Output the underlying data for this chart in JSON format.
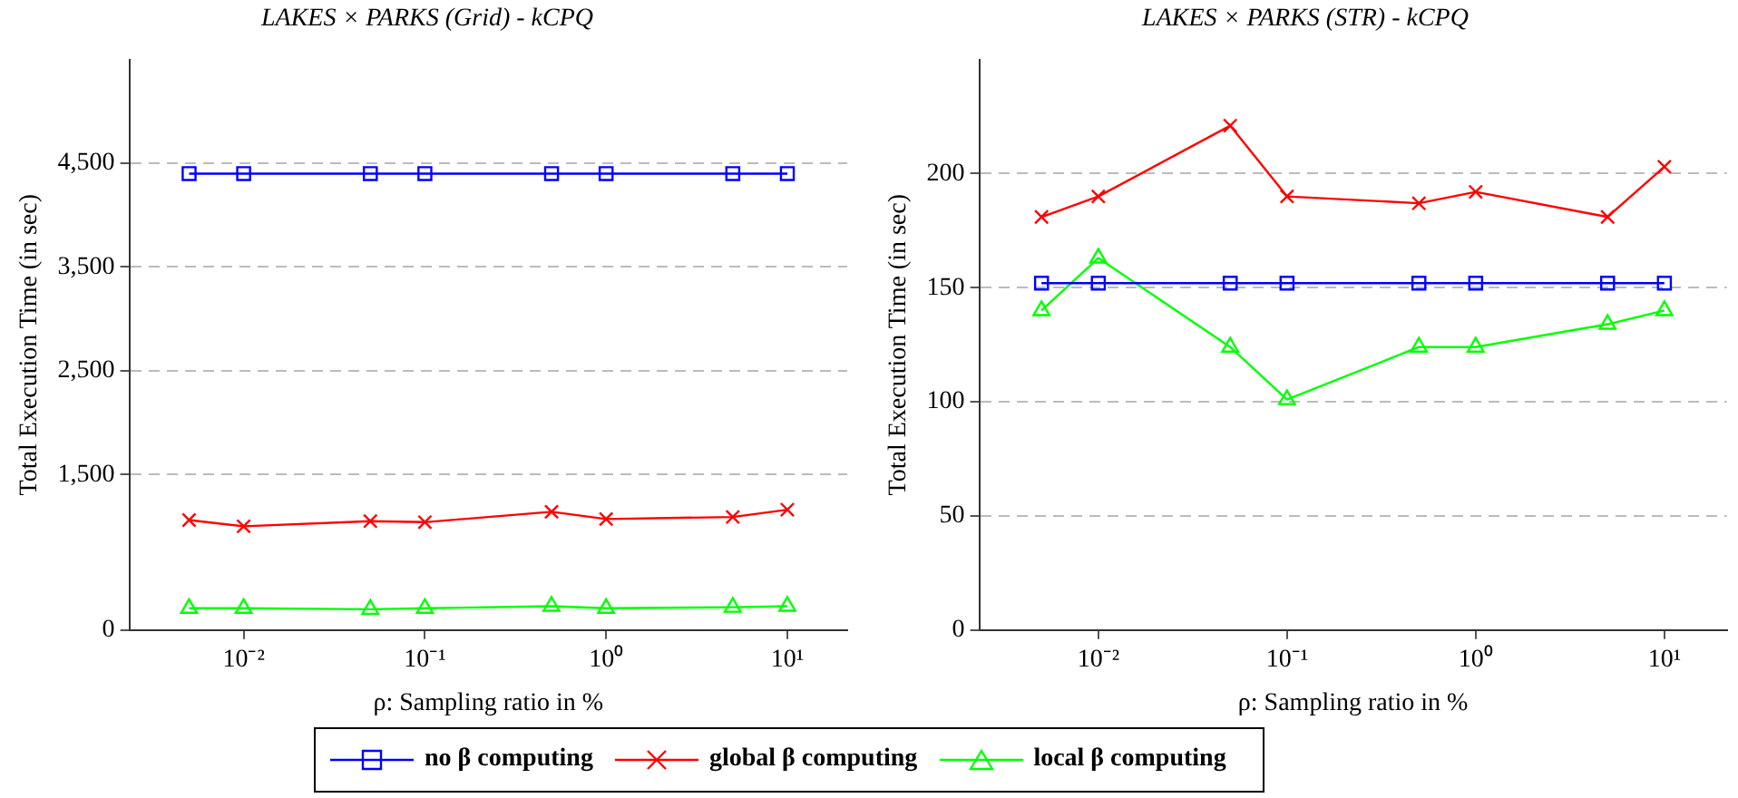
{
  "chart_data": [
    {
      "type": "line",
      "title": "LAKES × PARKS (Grid) - kCPQ",
      "xlabel": "ρ: Sampling ratio in %",
      "ylabel": "Total Execution Time (in sec)",
      "log": "x",
      "grid": "y",
      "legend": "bottom",
      "line_style": "solid",
      "x": [
        0.005,
        0.01,
        0.05,
        0.1,
        0.5,
        1,
        5,
        10
      ],
      "xlim": [
        0.00234,
        21.4
      ],
      "xticks": [
        {
          "value": 0.01,
          "label": "10⁻²"
        },
        {
          "value": 0.1,
          "label": "10⁻¹"
        },
        {
          "value": 1,
          "label": "10⁰"
        },
        {
          "value": 10,
          "label": "10¹"
        }
      ],
      "ylim": [
        0,
        5500
      ],
      "yticks": [
        {
          "value": 0,
          "label": "0"
        },
        {
          "value": 1500,
          "label": "1,500"
        },
        {
          "value": 2500,
          "label": "2,500"
        },
        {
          "value": 3500,
          "label": "3,500"
        },
        {
          "value": 4500,
          "label": "4,500"
        }
      ],
      "series": [
        {
          "name": "no β computing",
          "color": "#0000ff",
          "marker": "square",
          "values": [
            4400,
            4400,
            4400,
            4400,
            4400,
            4400,
            4400,
            4400
          ]
        },
        {
          "name": "global β computing",
          "color": "#ff0000",
          "marker": "cross",
          "values": [
            1060,
            1000,
            1050,
            1040,
            1140,
            1070,
            1090,
            1160
          ]
        },
        {
          "name": "local β computing",
          "color": "#00ff00",
          "marker": "triangle",
          "values": [
            210,
            210,
            200,
            210,
            230,
            210,
            220,
            230
          ]
        }
      ]
    },
    {
      "type": "line",
      "title": "LAKES × PARKS (STR) - kCPQ",
      "xlabel": "ρ: Sampling ratio in %",
      "ylabel": "Total Execution Time (in sec)",
      "log": "x",
      "grid": "y",
      "line_style": "solid",
      "x": [
        0.005,
        0.01,
        0.05,
        0.1,
        0.5,
        1,
        5,
        10
      ],
      "xlim": [
        0.00234,
        21.4
      ],
      "xticks": [
        {
          "value": 0.01,
          "label": "10⁻²"
        },
        {
          "value": 0.1,
          "label": "10⁻¹"
        },
        {
          "value": 1,
          "label": "10⁰"
        },
        {
          "value": 10,
          "label": "10¹"
        }
      ],
      "ylim": [
        0,
        250
      ],
      "yticks": [
        0,
        50,
        100,
        150,
        200
      ],
      "series": [
        {
          "color": "#0000ff",
          "marker": "square",
          "values": [
            152,
            152,
            152,
            152,
            152,
            152,
            152,
            152
          ]
        },
        {
          "color": "#ff0000",
          "marker": "cross",
          "values": [
            181,
            190,
            221,
            190,
            187,
            192,
            181,
            203
          ]
        },
        {
          "color": "#00ff00",
          "marker": "triangle",
          "values": [
            140,
            163,
            124,
            101,
            124,
            124,
            134,
            140
          ]
        }
      ]
    }
  ]
}
